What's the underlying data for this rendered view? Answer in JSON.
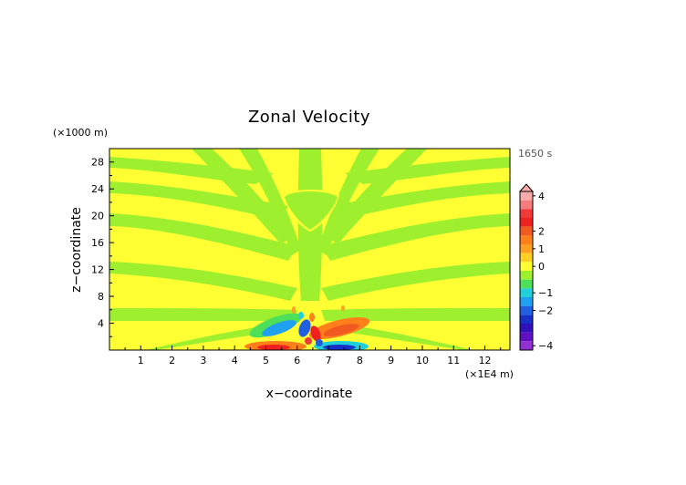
{
  "chart_data": {
    "type": "heatmap",
    "title": "Zonal Velocity",
    "xlabel": "x−coordinate",
    "ylabel": "z−coordinate",
    "x_unit": "(×1E4 m)",
    "y_unit": "(×1000 m)",
    "time_label": "1650 s",
    "xlim": [
      0,
      12.8
    ],
    "ylim": [
      0,
      30
    ],
    "x_ticks": [
      "1",
      "2",
      "3",
      "4",
      "5",
      "6",
      "7",
      "8",
      "9",
      "10",
      "11",
      "12"
    ],
    "y_ticks": [
      "4",
      "8",
      "12",
      "16",
      "20",
      "24",
      "28"
    ],
    "colorbar_labels": [
      "4",
      "2",
      "1",
      "0",
      "−1",
      "−2",
      "−4"
    ],
    "colorbar_levels": [
      {
        "value": 4.0,
        "color": "#f9aaaa"
      },
      {
        "value": 3.5,
        "color": "#f47c7c"
      },
      {
        "value": 3.0,
        "color": "#f03a3a"
      },
      {
        "value": 2.5,
        "color": "#ee2020"
      },
      {
        "value": 2.0,
        "color": "#f05a20"
      },
      {
        "value": 1.5,
        "color": "#ff7f1a"
      },
      {
        "value": 1.0,
        "color": "#ffa020"
      },
      {
        "value": 0.5,
        "color": "#ffd020"
      },
      {
        "value": 0.0,
        "color": "#ffff33"
      },
      {
        "value": -0.25,
        "color": "#9ef02f"
      },
      {
        "value": -0.5,
        "color": "#4fe05a"
      },
      {
        "value": -1.0,
        "color": "#20d0d8"
      },
      {
        "value": -1.5,
        "color": "#20a0f0"
      },
      {
        "value": -2.0,
        "color": "#2060e0"
      },
      {
        "value": -2.5,
        "color": "#1830c8"
      },
      {
        "value": -3.0,
        "color": "#3010b8"
      },
      {
        "value": -3.5,
        "color": "#6010c0"
      },
      {
        "value": -4.0,
        "color": "#9030d0"
      }
    ],
    "colorbar_overflow_color": "#f9aaaa",
    "background_color": "#ffff33",
    "band_color": "#9ef02f",
    "grid": false,
    "legend": "right"
  }
}
